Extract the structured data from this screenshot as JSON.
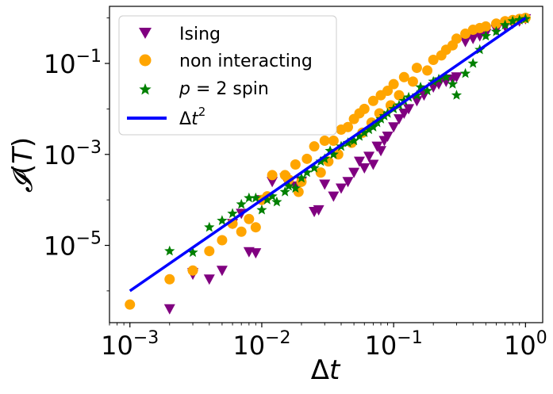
{
  "chart_data": {
    "type": "scatter",
    "xscale": "log",
    "yscale": "log",
    "xlim": [
      0.0007,
      1.35
    ],
    "ylim": [
      2e-07,
      1.8
    ],
    "xlabel_base": "Δ",
    "xlabel_var": "t",
    "ylabel_main": "𝓘",
    "ylabel_paren_open": "(",
    "ylabel_var": "T",
    "ylabel_paren_close": ")",
    "x_ticks": [
      {
        "value": 0.001,
        "base": "10",
        "exp": "−3"
      },
      {
        "value": 0.01,
        "base": "10",
        "exp": "−2"
      },
      {
        "value": 0.1,
        "base": "10",
        "exp": "−1"
      },
      {
        "value": 1,
        "base": "10",
        "exp": "0"
      }
    ],
    "y_ticks": [
      {
        "value": 1e-05,
        "base": "10",
        "exp": "−5"
      },
      {
        "value": 0.001,
        "base": "10",
        "exp": "−3"
      },
      {
        "value": 0.1,
        "base": "10",
        "exp": "−1"
      }
    ],
    "legend": {
      "position": "top-left",
      "entries": [
        {
          "key": "ising",
          "label": "Ising"
        },
        {
          "key": "nonint",
          "label": "non interacting"
        },
        {
          "key": "p2spin",
          "label_var": "p",
          "label_rest": " = 2 spin"
        },
        {
          "key": "fit",
          "label_base": "Δ",
          "label_var": "t",
          "label_exp": "2"
        }
      ]
    },
    "series": [
      {
        "name": "Ising",
        "marker": "triangle-down",
        "color": "#800080",
        "points": [
          [
            0.002,
            4e-07
          ],
          [
            0.003,
            2.5e-06
          ],
          [
            0.004,
            1.8e-06
          ],
          [
            0.005,
            2.8e-06
          ],
          [
            0.008,
            7.2e-06
          ],
          [
            0.009,
            6.8e-06
          ],
          [
            0.003,
            2.3e-06
          ],
          [
            0.02,
            0.00025
          ],
          [
            0.025,
            5.5e-05
          ],
          [
            0.027,
            6e-05
          ],
          [
            0.03,
            0.00022
          ],
          [
            0.035,
            0.00012
          ],
          [
            0.04,
            0.00018
          ],
          [
            0.045,
            0.00025
          ],
          [
            0.05,
            0.0004
          ],
          [
            0.06,
            0.0005
          ],
          [
            0.07,
            0.0006
          ],
          [
            0.08,
            0.0012
          ],
          [
            0.09,
            0.0025
          ],
          [
            0.1,
            0.004
          ],
          [
            0.12,
            0.008
          ],
          [
            0.15,
            0.015
          ],
          [
            0.2,
            0.03
          ],
          [
            0.25,
            0.04
          ],
          [
            0.3,
            0.05
          ],
          [
            0.35,
            0.3
          ],
          [
            0.4,
            0.35
          ],
          [
            0.45,
            0.4
          ],
          [
            0.5,
            0.45
          ],
          [
            0.6,
            0.55
          ],
          [
            0.7,
            0.65
          ],
          [
            0.8,
            0.75
          ],
          [
            0.9,
            0.85
          ],
          [
            1,
            0.95
          ],
          [
            0.006,
            3e-05
          ],
          [
            0.007,
            5e-05
          ],
          [
            0.01,
            0.0001
          ],
          [
            0.012,
            0.00025
          ],
          [
            0.015,
            0.0003
          ],
          [
            0.018,
            0.0002
          ],
          [
            0.055,
            0.0007
          ],
          [
            0.065,
            0.0009
          ],
          [
            0.075,
            0.0015
          ],
          [
            0.085,
            0.002
          ],
          [
            0.11,
            0.006
          ],
          [
            0.13,
            0.01
          ],
          [
            0.17,
            0.02
          ],
          [
            0.22,
            0.035
          ],
          [
            0.28,
            0.045
          ]
        ]
      },
      {
        "name": "non interacting",
        "marker": "circle",
        "color": "#FFA500",
        "points": [
          [
            0.001,
            5e-07
          ],
          [
            0.002,
            1.8e-06
          ],
          [
            0.003,
            2.8e-06
          ],
          [
            0.004,
            7.5e-06
          ],
          [
            0.005,
            1.3e-05
          ],
          [
            0.006,
            3e-05
          ],
          [
            0.007,
            2e-05
          ],
          [
            0.008,
            3.8e-05
          ],
          [
            0.009,
            2.5e-05
          ],
          [
            0.01,
            0.0001
          ],
          [
            0.011,
            0.00012
          ],
          [
            0.012,
            0.00035
          ],
          [
            0.015,
            0.00035
          ],
          [
            0.018,
            0.0006
          ],
          [
            0.02,
            0.00025
          ],
          [
            0.022,
            0.0008
          ],
          [
            0.025,
            0.0015
          ],
          [
            0.03,
            0.002
          ],
          [
            0.035,
            0.002
          ],
          [
            0.04,
            0.0035
          ],
          [
            0.045,
            0.004
          ],
          [
            0.05,
            0.006
          ],
          [
            0.055,
            0.008
          ],
          [
            0.06,
            0.01
          ],
          [
            0.07,
            0.015
          ],
          [
            0.08,
            0.02
          ],
          [
            0.09,
            0.025
          ],
          [
            0.1,
            0.035
          ],
          [
            0.12,
            0.05
          ],
          [
            0.15,
            0.08
          ],
          [
            0.2,
            0.12
          ],
          [
            0.25,
            0.2
          ],
          [
            0.3,
            0.35
          ],
          [
            0.35,
            0.45
          ],
          [
            0.4,
            0.55
          ],
          [
            0.45,
            0.6
          ],
          [
            0.5,
            0.65
          ],
          [
            0.6,
            0.75
          ],
          [
            0.7,
            0.85
          ],
          [
            0.8,
            0.9
          ],
          [
            0.9,
            0.95
          ],
          [
            1,
            1
          ],
          [
            0.016,
            0.00028
          ],
          [
            0.019,
            0.00015
          ],
          [
            0.028,
            0.0004
          ],
          [
            0.032,
            0.0007
          ],
          [
            0.038,
            0.001
          ],
          [
            0.048,
            0.0018
          ],
          [
            0.058,
            0.003
          ],
          [
            0.068,
            0.005
          ],
          [
            0.078,
            0.008
          ],
          [
            0.095,
            0.012
          ],
          [
            0.11,
            0.02
          ],
          [
            0.14,
            0.04
          ],
          [
            0.18,
            0.07
          ],
          [
            0.23,
            0.15
          ],
          [
            0.28,
            0.25
          ]
        ]
      },
      {
        "name": "p = 2 spin",
        "marker": "star",
        "color": "#008000",
        "points": [
          [
            0.002,
            7.5e-06
          ],
          [
            0.003,
            7e-06
          ],
          [
            0.004,
            2.5e-05
          ],
          [
            0.005,
            3.5e-05
          ],
          [
            0.006,
            5e-05
          ],
          [
            0.007,
            8e-05
          ],
          [
            0.008,
            0.00011
          ],
          [
            0.009,
            0.00011
          ],
          [
            0.01,
            6e-05
          ],
          [
            0.012,
            0.00012
          ],
          [
            0.015,
            0.00015
          ],
          [
            0.018,
            0.00018
          ],
          [
            0.02,
            0.0003
          ],
          [
            0.025,
            0.0005
          ],
          [
            0.03,
            0.0008
          ],
          [
            0.035,
            0.001
          ],
          [
            0.04,
            0.0015
          ],
          [
            0.05,
            0.002
          ],
          [
            0.06,
            0.003
          ],
          [
            0.07,
            0.004
          ],
          [
            0.08,
            0.006
          ],
          [
            0.09,
            0.008
          ],
          [
            0.1,
            0.01
          ],
          [
            0.12,
            0.015
          ],
          [
            0.15,
            0.02
          ],
          [
            0.18,
            0.025
          ],
          [
            0.2,
            0.04
          ],
          [
            0.25,
            0.05
          ],
          [
            0.3,
            0.02
          ],
          [
            0.35,
            0.06
          ],
          [
            0.4,
            0.1
          ],
          [
            0.45,
            0.2
          ],
          [
            0.5,
            0.4
          ],
          [
            0.6,
            0.5
          ],
          [
            0.7,
            0.7
          ],
          [
            0.8,
            0.85
          ],
          [
            0.9,
            0.9
          ],
          [
            1,
            0.95
          ],
          [
            0.011,
            0.0001
          ],
          [
            0.013,
            9e-05
          ],
          [
            0.016,
            0.0002
          ],
          [
            0.022,
            0.0004
          ],
          [
            0.028,
            0.0007
          ],
          [
            0.033,
            0.0012
          ],
          [
            0.045,
            0.0018
          ],
          [
            0.055,
            0.0025
          ],
          [
            0.065,
            0.0035
          ],
          [
            0.075,
            0.005
          ],
          [
            0.085,
            0.007
          ],
          [
            0.11,
            0.012
          ],
          [
            0.13,
            0.018
          ],
          [
            0.16,
            0.03
          ],
          [
            0.22,
            0.045
          ],
          [
            0.28,
            0.035
          ]
        ]
      }
    ],
    "fit_line": {
      "name": "Δt²",
      "color": "#0000FF",
      "points": [
        [
          0.001,
          1e-06
        ],
        [
          1,
          1
        ]
      ]
    }
  }
}
